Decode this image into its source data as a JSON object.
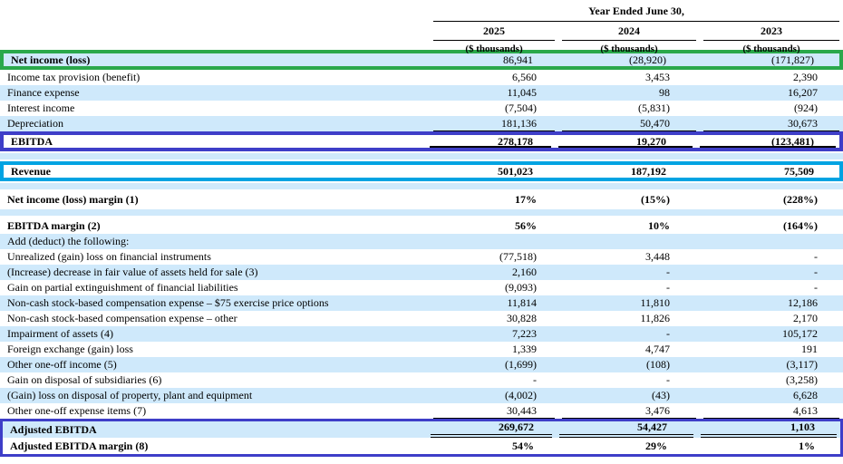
{
  "header": {
    "group_title": "Year Ended June 30,",
    "columns": [
      "2025",
      "2024",
      "2023"
    ],
    "units": [
      "($ thousands)",
      "($ thousands)",
      "($ thousands)"
    ]
  },
  "rows": [
    {
      "name": "row-net-income",
      "label": "Net income (loss)",
      "values": [
        "86,941",
        "(28,920)",
        "(171,827)"
      ],
      "bg": "blue",
      "bold_label": true,
      "box": "green"
    },
    {
      "name": "row-income-tax",
      "label": "Income tax provision (benefit)",
      "values": [
        "6,560",
        "3,453",
        "2,390"
      ],
      "bg": "white"
    },
    {
      "name": "row-finance-expense",
      "label": "Finance expense",
      "values": [
        "11,045",
        "98",
        "16,207"
      ],
      "bg": "blue"
    },
    {
      "name": "row-interest-income",
      "label": "Interest income",
      "values": [
        "(7,504)",
        "(5,831)",
        "(924)"
      ],
      "bg": "white"
    },
    {
      "name": "row-depreciation",
      "label": "Depreciation",
      "values": [
        "181,136",
        "50,470",
        "30,673"
      ],
      "bg": "blue",
      "rule": "single"
    },
    {
      "name": "row-ebitda",
      "label": "EBITDA",
      "values": [
        "278,178",
        "19,270",
        "(123,481)"
      ],
      "bg": "white",
      "bold": true,
      "box": "indigo",
      "rule": "thick"
    },
    {
      "type": "sep"
    },
    {
      "name": "row-revenue",
      "label": "Revenue",
      "values": [
        "501,023",
        "187,192",
        "75,509"
      ],
      "bg": "white",
      "bold": true,
      "box": "cyan"
    },
    {
      "type": "sep"
    },
    {
      "name": "row-net-income-margin",
      "label": "Net income (loss) margin (1)",
      "values": [
        "17%",
        "(15%)",
        "(228%)"
      ],
      "bg": "white",
      "bold": true,
      "tall": true
    },
    {
      "type": "sep"
    },
    {
      "name": "row-ebitda-margin",
      "label": "EBITDA margin (2)",
      "values": [
        "56%",
        "10%",
        "(164%)"
      ],
      "bg": "white",
      "bold": true,
      "tall": true
    },
    {
      "name": "row-add-deduct",
      "label": "Add (deduct) the following:",
      "values": [
        "",
        "",
        ""
      ],
      "bg": "blue"
    },
    {
      "name": "row-unrealized-gain-loss",
      "label": "Unrealized (gain) loss on financial instruments",
      "values": [
        "(77,518)",
        "3,448",
        "-"
      ],
      "bg": "white"
    },
    {
      "name": "row-fair-value-assets",
      "label": "(Increase) decrease in fair value of assets held for sale (3)",
      "values": [
        "2,160",
        "-",
        "-"
      ],
      "bg": "blue"
    },
    {
      "name": "row-partial-extinguishment",
      "label": "Gain on partial extinguishment of financial liabilities",
      "values": [
        "(9,093)",
        "-",
        "-"
      ],
      "bg": "white"
    },
    {
      "name": "row-stock-comp-75",
      "label": "Non-cash stock-based compensation expense – $75 exercise price options",
      "values": [
        "11,814",
        "11,810",
        "12,186"
      ],
      "bg": "blue"
    },
    {
      "name": "row-stock-comp-other",
      "label": "Non-cash stock-based compensation expense – other",
      "values": [
        "30,828",
        "11,826",
        "2,170"
      ],
      "bg": "white"
    },
    {
      "name": "row-impairment",
      "label": "Impairment of assets (4)",
      "values": [
        "7,223",
        "-",
        "105,172"
      ],
      "bg": "blue"
    },
    {
      "name": "row-foreign-exchange",
      "label": "Foreign exchange (gain) loss",
      "values": [
        "1,339",
        "4,747",
        "191"
      ],
      "bg": "white"
    },
    {
      "name": "row-other-one-off-income",
      "label": "Other one-off income (5)",
      "values": [
        "(1,699)",
        "(108)",
        "(3,117)"
      ],
      "bg": "blue"
    },
    {
      "name": "row-disposal-subsidiaries",
      "label": "Gain on disposal of subsidiaries (6)",
      "values": [
        "-",
        "-",
        "(3,258)"
      ],
      "bg": "white"
    },
    {
      "name": "row-disposal-ppe",
      "label": "(Gain) loss on disposal of property, plant and equipment",
      "values": [
        "(4,002)",
        "(43)",
        "6,628"
      ],
      "bg": "blue"
    },
    {
      "name": "row-other-one-off-expense",
      "label": "Other one-off expense items (7)",
      "values": [
        "30,443",
        "3,476",
        "4,613"
      ],
      "bg": "white",
      "rule": "single"
    },
    {
      "name": "row-adjusted-ebitda",
      "label": "Adjusted EBITDA",
      "values": [
        "269,672",
        "54,427",
        "1,103"
      ],
      "bg": "blue",
      "bold": true,
      "group": "adjusted",
      "rule": "double"
    },
    {
      "name": "row-adjusted-ebitda-margin",
      "label": "Adjusted EBITDA margin (8)",
      "values": [
        "54%",
        "29%",
        "1%"
      ],
      "bg": "white",
      "bold": true,
      "group": "adjusted"
    }
  ],
  "colors": {
    "row-blue": "#cfe9fb",
    "green": "#2aa84b",
    "indigo": "#3e3ec8",
    "cyan": "#00a3e2",
    "text": "#000000",
    "rule": "#000000"
  }
}
